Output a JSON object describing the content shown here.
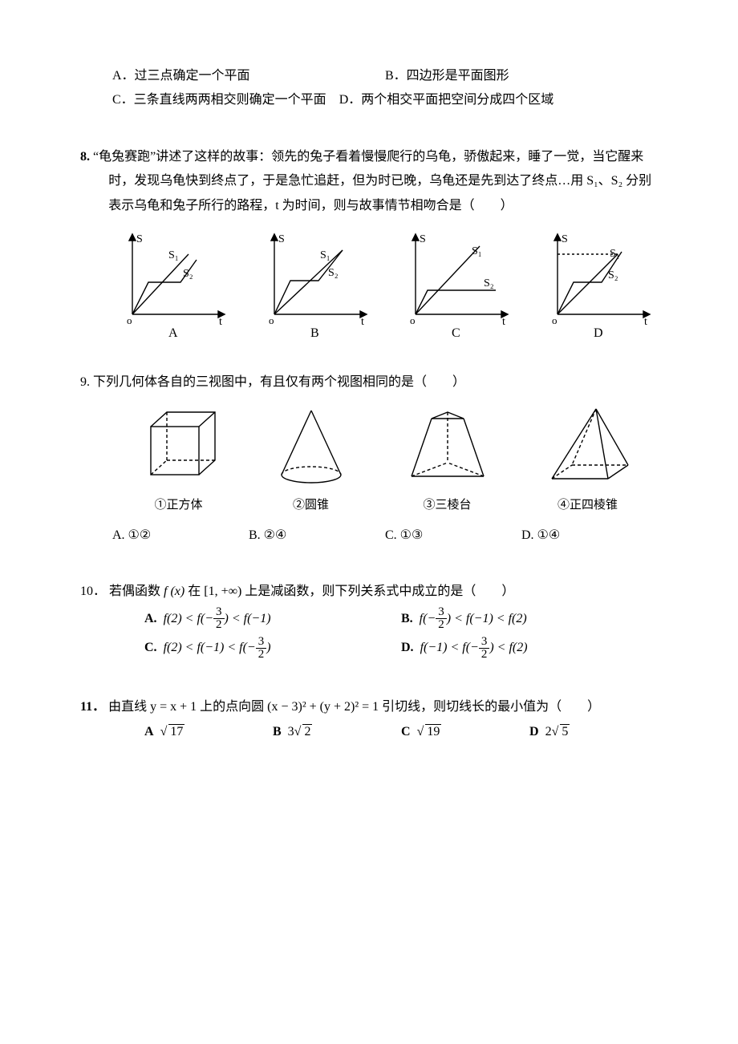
{
  "q7": {
    "options": {
      "A": "A．过三点确定一个平面",
      "B": "B．四边形是平面图形",
      "C": "C．三条直线两两相交则确定一个平面",
      "D": "D．两个相交平面把空间分成四个区域"
    }
  },
  "q8": {
    "number": "8.",
    "text": "“龟兔赛跑”讲述了这样的故事：领先的兔子看着慢慢爬行的乌龟，骄傲起来，睡了一觉，当它醒来时，发现乌龟快到终点了，于是急忙追赶，但为时已晚，乌龟还是先到达了终点…用 S₁、S₂ 分别表示乌龟和兔子所行的路程，t 为时间，则与故事情节相吻合是（　　）",
    "labels": {
      "A": "A",
      "B": "B",
      "C": "C",
      "D": "D",
      "S": "S",
      "t": "t",
      "S1": "S₁",
      "S2": "S₂"
    },
    "style": {
      "stroke": "#000000",
      "stroke_width": 1.4,
      "font": "14px Times New Roman"
    }
  },
  "q9": {
    "number": "9.",
    "text": "下列几何体各自的三视图中，有且仅有两个视图相同的是（　　）",
    "items": {
      "g1": "①正方体",
      "g2": "②圆锥",
      "g3": "③三棱台",
      "g4": "④正四棱锥"
    },
    "options": {
      "A": "A. ①②",
      "B": "B. ②④",
      "C": "C. ①③",
      "D": "D. ①④"
    },
    "style": {
      "stroke": "#000000",
      "stroke_width": 1.4,
      "dash": "4 3"
    }
  },
  "q10": {
    "number": "10．",
    "stem_pre": "若偶函数 ",
    "stem_fx": "f (x)",
    "stem_mid": " 在 ",
    "stem_int": "[1, +∞)",
    "stem_post": " 上是减函数，则下列关系式中成立的是（　　）",
    "options": {
      "A": {
        "label": "A.",
        "expr_parts": [
          "f(2) < f(−",
          {
            "frac": [
              "3",
              "2"
            ]
          },
          ") < f(−1)"
        ]
      },
      "B": {
        "label": "B.",
        "expr_parts": [
          "f(−",
          {
            "frac": [
              "3",
              "2"
            ]
          },
          ") < f(−1) < f(2)"
        ]
      },
      "C": {
        "label": "C.",
        "expr_parts": [
          "f(2) < f(−1) < f(−",
          {
            "frac": [
              "3",
              "2"
            ]
          },
          ")"
        ]
      },
      "D": {
        "label": "D.",
        "expr_parts": [
          "f(−1) < f(−",
          {
            "frac": [
              "3",
              "2"
            ]
          },
          ") < f(2)"
        ]
      }
    }
  },
  "q11": {
    "number": "11．",
    "stem": "由直线 y = x + 1 上的点向圆 (x − 3)² + (y + 2)² = 1 引切线，则切线长的最小值为（　　）",
    "options": {
      "A": {
        "label": "A",
        "coef": "",
        "rad": "17"
      },
      "B": {
        "label": "B",
        "coef": "3",
        "rad": "2"
      },
      "C": {
        "label": "C",
        "coef": "",
        "rad": "19"
      },
      "D": {
        "label": "D",
        "coef": "2",
        "rad": "5"
      }
    }
  }
}
